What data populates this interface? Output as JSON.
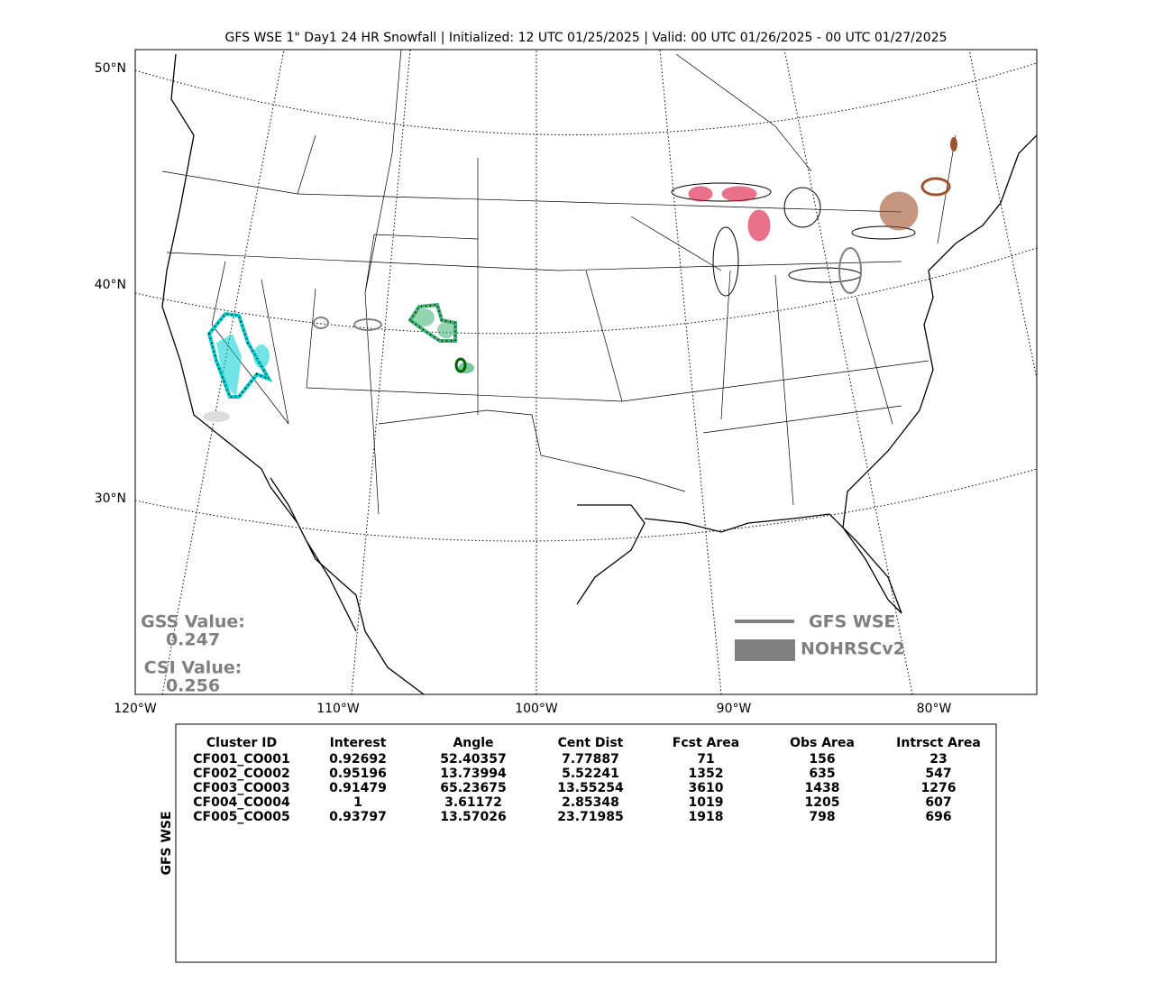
{
  "title": "GFS WSE 1\" Day1 24 HR Snowfall | Initialized: 12 UTC 01/25/2025 | Valid: 00 UTC 01/26/2025 - 00 UTC 01/27/2025",
  "map": {
    "lat_labels": [
      "50°N",
      "40°N",
      "30°N"
    ],
    "lon_labels": [
      "120°W",
      "110°W",
      "100°W",
      "90°W",
      "80°W"
    ],
    "gss_label": "GSS Value:",
    "gss_value": "0.247",
    "csi_label": "CSI Value:",
    "csi_value": "0.256",
    "legend": [
      "GFS WSE",
      "NOHRSCv2"
    ]
  },
  "table": {
    "side_label": "GFS WSE",
    "columns": [
      "Cluster ID",
      "Interest",
      "Angle",
      "Cent Dist",
      "Fcst Area",
      "Obs Area",
      "Intrsct Area"
    ],
    "rows": [
      {
        "color": "#006400",
        "cells": [
          "CF001_CO001",
          0.92692,
          52.40357,
          7.77887,
          71,
          156,
          23
        ]
      },
      {
        "color": "#3cb371",
        "cells": [
          "CF002_CO002",
          0.95196,
          13.73994,
          5.52241,
          1352,
          635,
          547
        ]
      },
      {
        "color": "#00ced1",
        "cells": [
          "CF003_CO003",
          0.91479,
          65.23675,
          13.55254,
          3610,
          1438,
          1276
        ]
      },
      {
        "color": "#dc143c",
        "cells": [
          "CF004_CO004",
          1,
          3.61172,
          2.85348,
          1019,
          1205,
          607
        ]
      },
      {
        "color": "#a0522d",
        "cells": [
          "CF005_CO005",
          0.93797,
          13.57026,
          23.71985,
          1918,
          798,
          696
        ]
      }
    ]
  }
}
